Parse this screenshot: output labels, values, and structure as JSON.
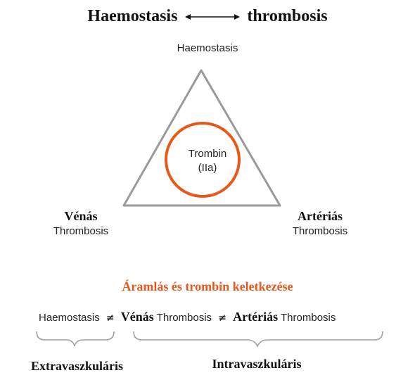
{
  "title": {
    "left": "Haemostasis",
    "right": "thrombosis"
  },
  "triangle": {
    "top_label": "Haemostasis",
    "center_line1": "Trombin",
    "center_line2": "(IIa)",
    "left_word1": "Vénás",
    "left_word2": "Thrombosis",
    "right_word1": "Artériás",
    "right_word2": "Thrombosis"
  },
  "subtitle": "Áramlás és trombin keletkezése",
  "comparison": {
    "item1": "Haemostasis",
    "neq1": "≠",
    "item2_bold": "Vénás",
    "item2_rest": "Thrombosis",
    "neq2": "≠",
    "item3_bold": "Artériás",
    "item3_rest": "Thrombosis"
  },
  "bottom": {
    "extra": "Extravaszkuláris",
    "intra": "Intravaszkuláris"
  },
  "colors": {
    "circle": "#e8581c",
    "subtitle": "#e8581c",
    "triangle_stroke": "#9a9a9a",
    "brace_stroke": "#a0a0a0"
  }
}
